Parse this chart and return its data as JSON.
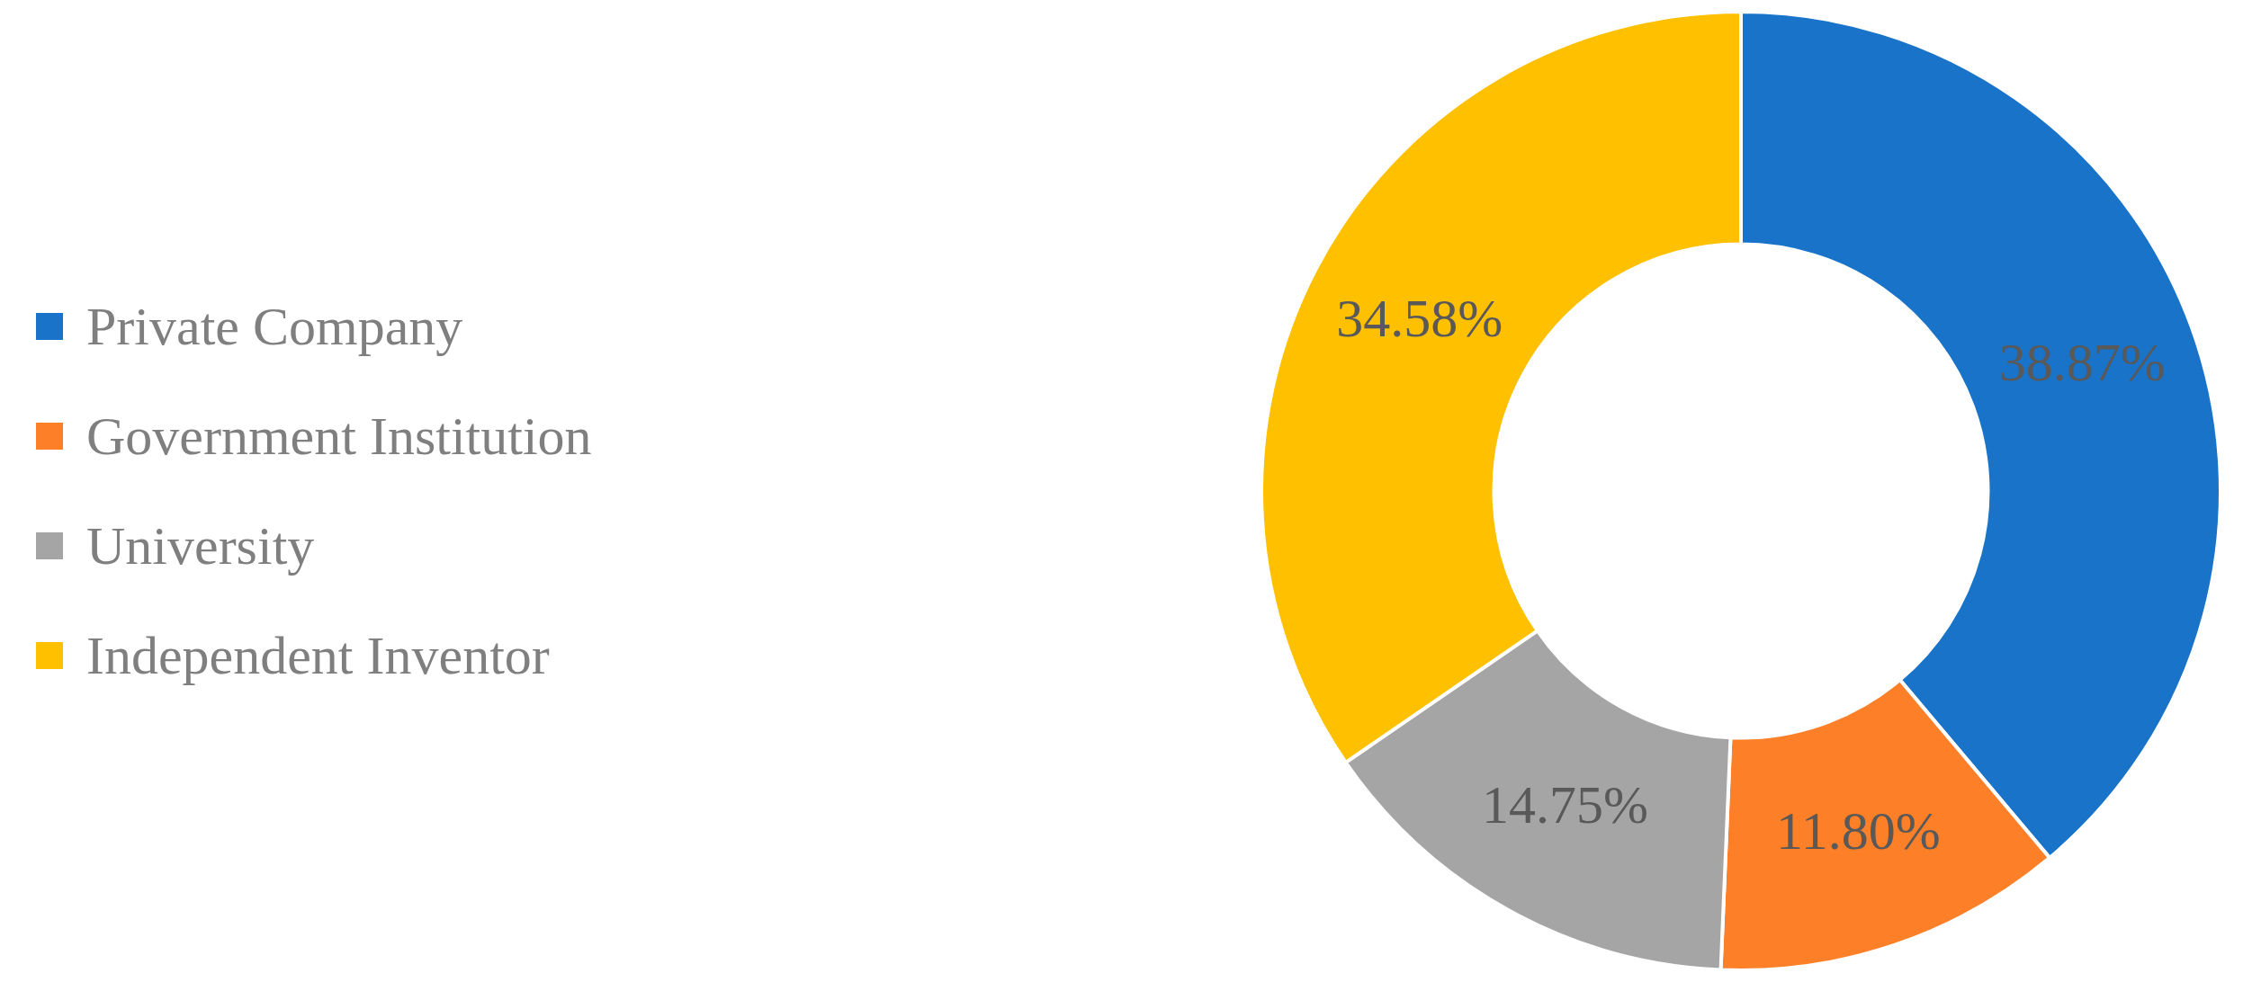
{
  "chart_data": {
    "type": "donut",
    "categories": [
      "Private Company",
      "Government Institution",
      "University",
      "Independent Inventor"
    ],
    "values": [
      38.87,
      11.8,
      14.75,
      34.58
    ],
    "value_labels": [
      "38.87%",
      "11.80%",
      "14.75%",
      "34.58%"
    ],
    "colors": [
      "#1873c9",
      "#fd7f28",
      "#a5a5a5",
      "#ffc000"
    ],
    "legend": "left"
  }
}
